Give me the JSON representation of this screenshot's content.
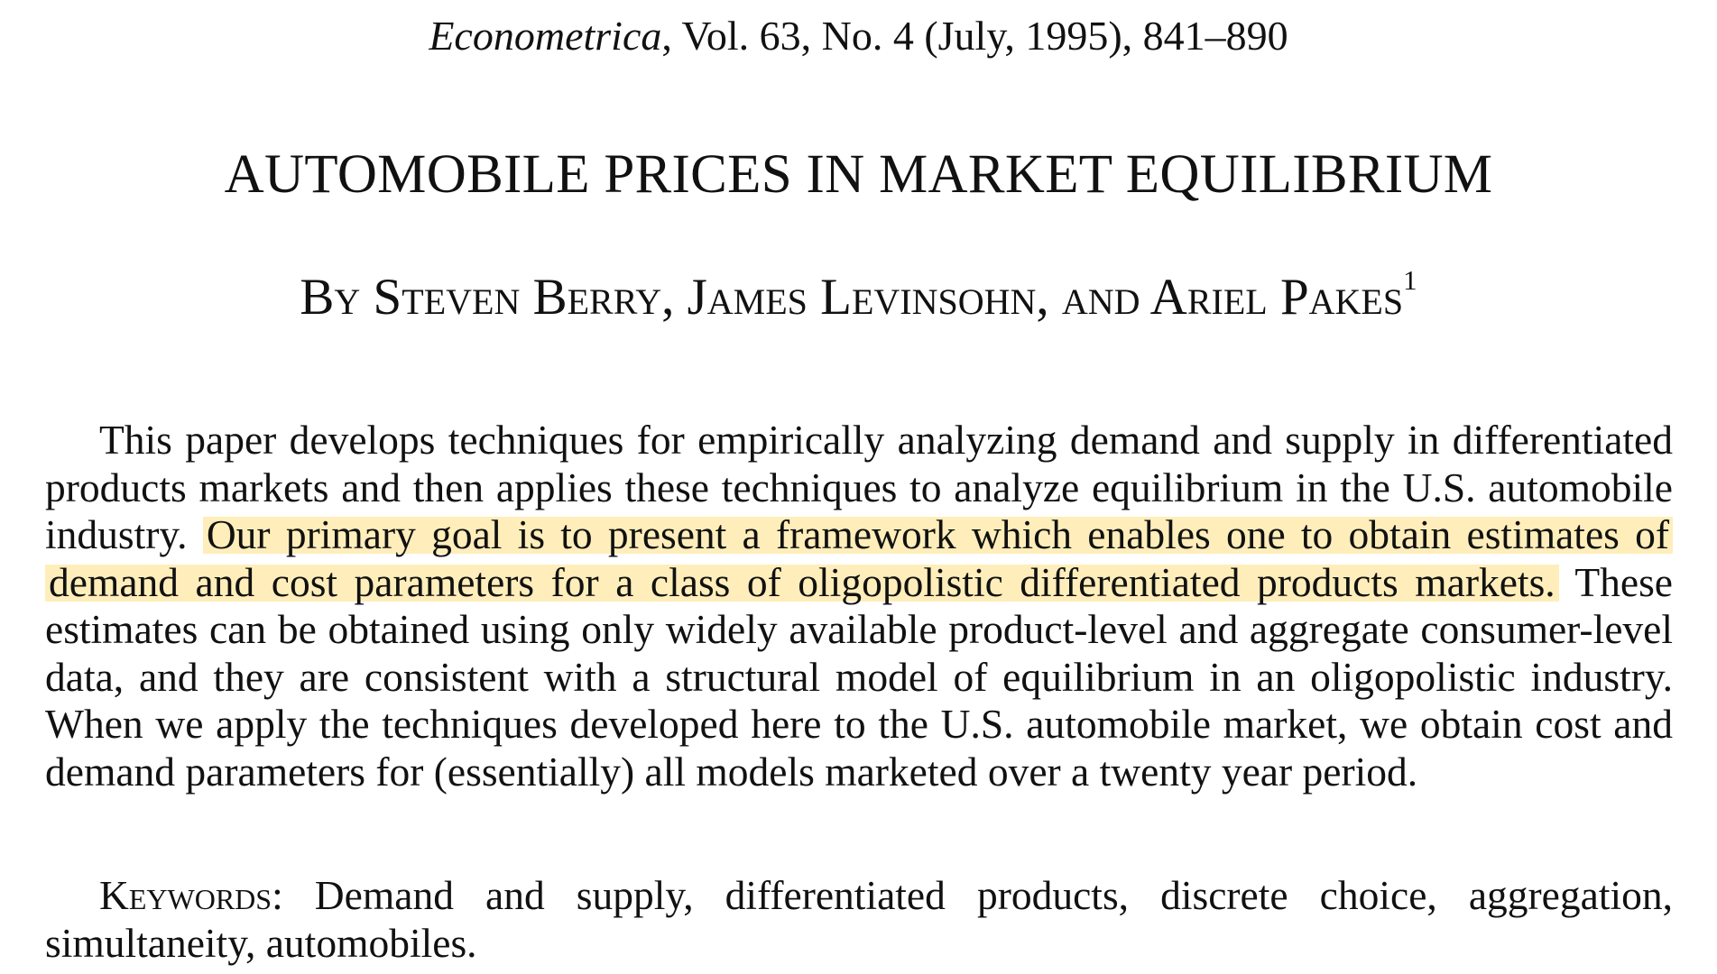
{
  "header": {
    "journal_name": "Econometrica",
    "volume_info": ", Vol. 63, No. 4 (July, 1995), 841–890"
  },
  "title": "AUTOMOBILE PRICES IN MARKET EQUILIBRIUM",
  "authors": {
    "text": "By Steven Berry, James Levinsohn, and Ariel Pakes",
    "footnote_mark": "1"
  },
  "abstract": {
    "before_highlight": "This paper develops techniques for empirically analyzing demand and supply in differentiated products markets and then applies these techniques to analyze equilibrium in the U.S. automobile industry. ",
    "highlighted": "Our primary goal is to present a framework which enables one to obtain estimates of demand and cost parameters for a class of oligopolistic differentiated products markets.",
    "after_highlight": " These estimates can be obtained using only widely available product-level and aggregate consumer-level data, and they are consistent with a structural model of equilibrium in an oligopolistic industry. When we apply the tech­niques developed here to the U.S. automobile market, we obtain cost and demand parameters for (essentially) all models marketed over a twenty year period.",
    "highlight_color": "#FFD65C"
  },
  "keywords": {
    "label": "Keywords:",
    "text": " Demand and supply, differentiated products, discrete choice, aggregation, simultaneity, automobiles."
  }
}
